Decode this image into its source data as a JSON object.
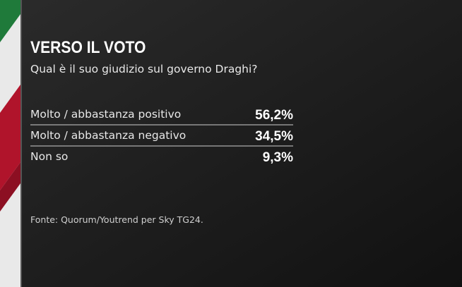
{
  "header": {
    "title": "VERSO IL VOTO",
    "subtitle": "Qual è il suo giudizio sul governo Draghi?"
  },
  "table": {
    "rows": [
      {
        "label": "Molto / abbastanza positivo",
        "value": "56,2%"
      },
      {
        "label": "Molto / abbastanza negativo",
        "value": "34,5%"
      },
      {
        "label": "Non so",
        "value": "9,3%"
      }
    ]
  },
  "footer": {
    "source": "Fonte: Quorum/Youtrend per Sky TG24."
  }
}
